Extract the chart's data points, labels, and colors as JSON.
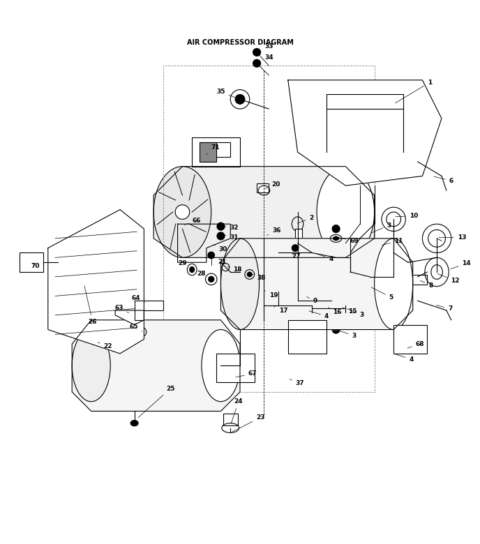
{
  "title": "AIR COMPRESSOR DIAGRAM",
  "bg_color": "#ffffff",
  "line_color": "#000000",
  "label_color": "#000000",
  "figsize": [
    6.88,
    7.8
  ],
  "dpi": 100
}
